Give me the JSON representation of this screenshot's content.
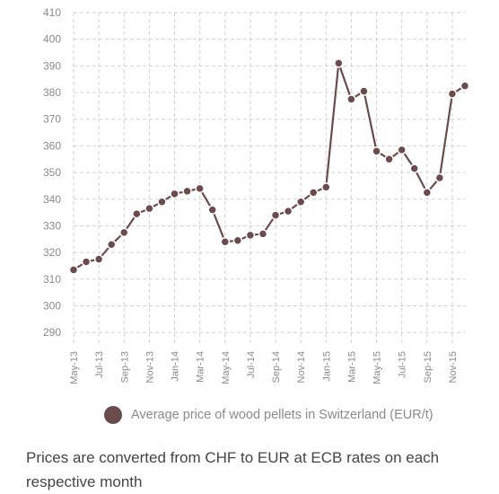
{
  "chart_data": {
    "type": "line",
    "series": [
      {
        "name": "Average price of wood pellets in Switzerland (EUR/t)",
        "color": "#6b4c4e",
        "x": [
          "May-13",
          "Jun-13",
          "Jul-13",
          "Aug-13",
          "Sep-13",
          "Oct-13",
          "Nov-13",
          "Dec-13",
          "Jan-14",
          "Feb-14",
          "Mar-14",
          "Apr-14",
          "May-14",
          "Jun-14",
          "Jul-14",
          "Aug-14",
          "Sep-14",
          "Oct-14",
          "Nov-14",
          "Dec-14",
          "Jan-15",
          "Feb-15",
          "Mar-15",
          "Apr-15",
          "May-15",
          "Jun-15",
          "Jul-15",
          "Aug-15",
          "Sep-15",
          "Oct-15",
          "Nov-15",
          "Dec-15"
        ],
        "values": [
          313.5,
          316.5,
          317.5,
          323,
          327.5,
          334.5,
          336.5,
          339,
          342,
          343,
          344,
          336,
          324,
          324.5,
          326.5,
          327,
          334,
          335.5,
          339,
          342.5,
          344.5,
          391,
          377.5,
          380.5,
          358,
          355,
          358.5,
          351.5,
          342.5,
          348,
          379.5,
          382.5
        ]
      }
    ],
    "x_tick_labels": [
      "May-13",
      "Jul-13",
      "Sep-13",
      "Nov-13",
      "Jan-14",
      "Mar-14",
      "May-14",
      "Jul-14",
      "Sep-14",
      "Nov-14",
      "Jan-15",
      "Mar-15",
      "May-15",
      "Jul-15",
      "Sep-15",
      "Nov-15"
    ],
    "yticks": [
      290,
      300,
      310,
      320,
      330,
      340,
      350,
      360,
      370,
      380,
      390,
      400,
      410
    ],
    "ylim": [
      285,
      410
    ],
    "grid": true,
    "grid_style": "dashed",
    "legend": "bottom",
    "xlabel": "",
    "ylabel": "",
    "title": ""
  },
  "caption": "Prices are converted from CHF to EUR at ECB rates on each respective month"
}
